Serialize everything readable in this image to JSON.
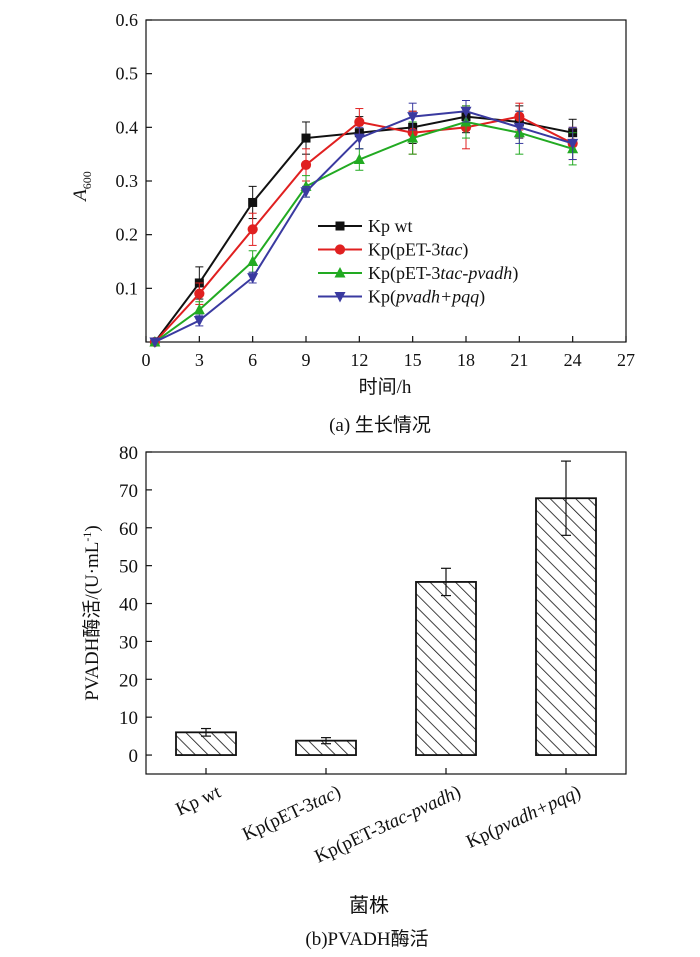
{
  "chart_data": [
    {
      "type": "line",
      "caption": "(a) 生长情况",
      "xlabel": "时间/h",
      "ylabel_main": "A",
      "ylabel_sub": "600",
      "xlim": [
        0,
        27
      ],
      "ylim": [
        0,
        0.6
      ],
      "xticks": [
        "0",
        "3",
        "6",
        "9",
        "12",
        "15",
        "18",
        "21",
        "24",
        "27"
      ],
      "yticks": [
        "0.6",
        "0.5",
        "0.4",
        "0.3",
        "0.2",
        "0.1"
      ],
      "grid": false,
      "legend_position": "center-right",
      "series": [
        {
          "name_parts": [
            "Kp wt"
          ],
          "color": "#111111",
          "marker": "square",
          "x": [
            0.5,
            3,
            6,
            9,
            12,
            15,
            18,
            21,
            24
          ],
          "y": [
            0,
            0.11,
            0.26,
            0.38,
            0.39,
            0.4,
            0.42,
            0.41,
            0.39
          ],
          "err": [
            0,
            0.03,
            0.03,
            0.03,
            0.03,
            0.03,
            0.03,
            0.03,
            0.025
          ]
        },
        {
          "name_parts": [
            "Kp(pET-3",
            "tac",
            ")"
          ],
          "color": "#e02020",
          "marker": "circle",
          "x": [
            0.5,
            3,
            6,
            9,
            12,
            15,
            18,
            21,
            24
          ],
          "y": [
            0,
            0.09,
            0.21,
            0.33,
            0.41,
            0.39,
            0.4,
            0.42,
            0.37
          ],
          "err": [
            0,
            0.02,
            0.03,
            0.03,
            0.025,
            0.04,
            0.04,
            0.025,
            0.03
          ]
        },
        {
          "name_parts": [
            "Kp(pET-3",
            "tac-pvadh",
            ")"
          ],
          "color": "#22aa22",
          "marker": "triangle-up",
          "x": [
            0.5,
            3,
            6,
            9,
            12,
            15,
            18,
            21,
            24
          ],
          "y": [
            0,
            0.06,
            0.15,
            0.29,
            0.34,
            0.38,
            0.41,
            0.39,
            0.36
          ],
          "err": [
            0,
            0.015,
            0.02,
            0.02,
            0.02,
            0.03,
            0.03,
            0.04,
            0.03
          ]
        },
        {
          "name_parts": [
            "Kp(",
            "pvadh+pqq",
            ")"
          ],
          "color": "#3a3aa0",
          "marker": "triangle-down",
          "x": [
            0.5,
            3,
            6,
            9,
            12,
            15,
            18,
            21,
            24
          ],
          "y": [
            0,
            0.04,
            0.12,
            0.28,
            0.38,
            0.42,
            0.43,
            0.4,
            0.37
          ],
          "err": [
            0,
            0.01,
            0.01,
            0.01,
            0.02,
            0.025,
            0.02,
            0.03,
            0.03
          ]
        }
      ]
    },
    {
      "type": "bar",
      "caption": "(b)PVADH酶活",
      "xlabel": "菌株",
      "ylabel_text": "PVADH酶活/(U·mL",
      "ylabel_sup": "-1",
      "ylabel_close": ")",
      "ylim": [
        -5,
        80
      ],
      "yticks": [
        "80",
        "70",
        "60",
        "50",
        "40",
        "30",
        "20",
        "10",
        "0"
      ],
      "categories": [
        "Kp wt",
        "Kp(pET-3tac)",
        "Kp(pET-3tac-pvadh)",
        "Kp(pvadh+pqq)"
      ],
      "category_parts": [
        [
          "Kp wt"
        ],
        [
          "Kp(pET-3",
          "tac",
          ")"
        ],
        [
          "Kp(pET-3",
          "tac-pvadh",
          ")"
        ],
        [
          "Kp(",
          "pvadh+pqq",
          ")"
        ]
      ],
      "values": [
        6.0,
        3.8,
        45.7,
        67.8
      ],
      "errors": [
        1.0,
        0.8,
        3.6,
        9.8
      ],
      "fill": "hatched"
    }
  ]
}
